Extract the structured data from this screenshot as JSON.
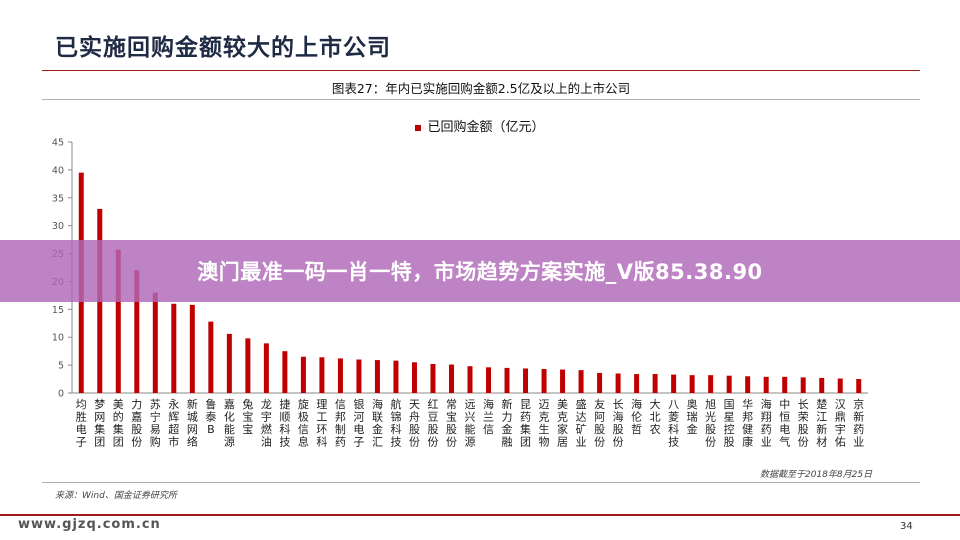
{
  "slide": {
    "title": "已实施回购金额较大的上市公司",
    "caption": "图表27：年内已实施回购金额2.5亿及以上的上市公司",
    "date_note": "数据截至于2018年8月25日",
    "source_note": "来源：Wind、国金证券研究所",
    "watermark": "www.gjzq.com.cn",
    "page_number": "34"
  },
  "overlay": {
    "text": "澳门最准一码一肖一特，市场趋势方案实施_V版85.38.90"
  },
  "chart_data": {
    "type": "bar",
    "title": "",
    "xlabel": "",
    "ylabel": "",
    "ylim": [
      0,
      45
    ],
    "yticks": [
      "0",
      "5",
      "10",
      "15",
      "20",
      "25",
      "30",
      "35",
      "40",
      "45"
    ],
    "grid": false,
    "legend_position": "top-center",
    "bar_color": "#c00000",
    "categories": [
      "均胜电子",
      "梦网集团",
      "美的集团",
      "力嘉股份",
      "苏宁易购",
      "永辉超市",
      "新城网络",
      "鲁泰B",
      "嘉化能源",
      "兔宝宝",
      "龙宇燃油",
      "捷顺科技",
      "旋极信息",
      "理工环科",
      "信邦制药",
      "银河电子",
      "海联金汇",
      "航锦科技",
      "天舟股份",
      "红豆股份",
      "常宝股份",
      "远兴能源",
      "海兰信",
      "新力金融",
      "昆药集团",
      "迈克生物",
      "美克家居",
      "盛达矿业",
      "友阿股份",
      "长海股份",
      "海伦哲",
      "大北农",
      "八菱科技",
      "奥瑞金",
      "旭光股份",
      "国星控股",
      "华邦健康",
      "海翔药业",
      "中恒电气",
      "长荣股份",
      "楚江新材",
      "汉鼎宇佑",
      "京新药业"
    ],
    "series": [
      {
        "name": "已回购金额（亿元）",
        "values": [
          39.5,
          33.0,
          25.7,
          22.0,
          18.0,
          16.0,
          15.8,
          12.8,
          10.6,
          9.8,
          8.9,
          7.5,
          6.5,
          6.4,
          6.2,
          6.0,
          5.9,
          5.8,
          5.5,
          5.2,
          5.1,
          4.8,
          4.6,
          4.5,
          4.4,
          4.3,
          4.2,
          4.1,
          3.6,
          3.5,
          3.4,
          3.4,
          3.3,
          3.2,
          3.2,
          3.1,
          3.0,
          2.9,
          2.9,
          2.8,
          2.7,
          2.6,
          2.5
        ]
      }
    ]
  }
}
